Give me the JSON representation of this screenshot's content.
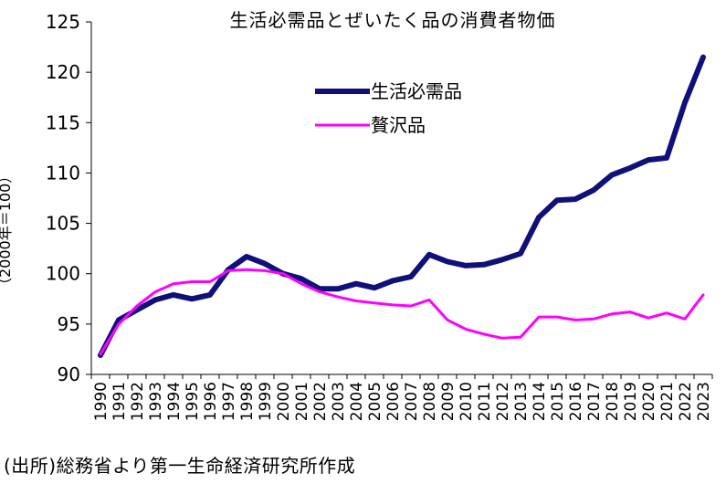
{
  "chart_data": {
    "type": "line",
    "title": "生活必需品とぜいたく品の消費者物価",
    "ylabel": "（2000年＝100）",
    "xlabel": "",
    "ylim": [
      90,
      125
    ],
    "yticks": [
      90,
      95,
      100,
      105,
      110,
      115,
      120,
      125
    ],
    "categories": [
      "1990",
      "1991",
      "1992",
      "1993",
      "1994",
      "1995",
      "1996",
      "1997",
      "1998",
      "1999",
      "2000",
      "2001",
      "2002",
      "2003",
      "2004",
      "2005",
      "2006",
      "2007",
      "2008",
      "2009",
      "2010",
      "2011",
      "2012",
      "2013",
      "2014",
      "2015",
      "2016",
      "2017",
      "2018",
      "2019",
      "2020",
      "2021",
      "2022",
      "2023"
    ],
    "series": [
      {
        "name": "生活必需品",
        "color": "#10107a",
        "values": [
          91.9,
          95.4,
          96.4,
          97.4,
          97.9,
          97.5,
          97.9,
          100.4,
          101.7,
          101.0,
          100.0,
          99.5,
          98.5,
          98.5,
          99.0,
          98.6,
          99.3,
          99.7,
          101.9,
          101.2,
          100.8,
          100.9,
          101.4,
          102.0,
          105.6,
          107.3,
          107.4,
          108.3,
          109.8,
          110.5,
          111.3,
          111.5,
          117.0,
          121.5
        ]
      },
      {
        "name": "贅沢品",
        "color": "#ff00ff",
        "values": [
          92.0,
          95.0,
          96.8,
          98.2,
          99.0,
          99.2,
          99.2,
          100.3,
          100.4,
          100.3,
          100.0,
          99.0,
          98.2,
          97.7,
          97.3,
          97.1,
          96.9,
          96.8,
          97.4,
          95.4,
          94.5,
          94.0,
          93.6,
          93.7,
          95.7,
          95.7,
          95.4,
          95.5,
          96.0,
          96.2,
          95.6,
          96.1,
          95.5,
          97.9
        ]
      }
    ],
    "legend": "upper-center",
    "grid": false
  },
  "source": "(出所)総務省より第一生命経済研究所作成"
}
